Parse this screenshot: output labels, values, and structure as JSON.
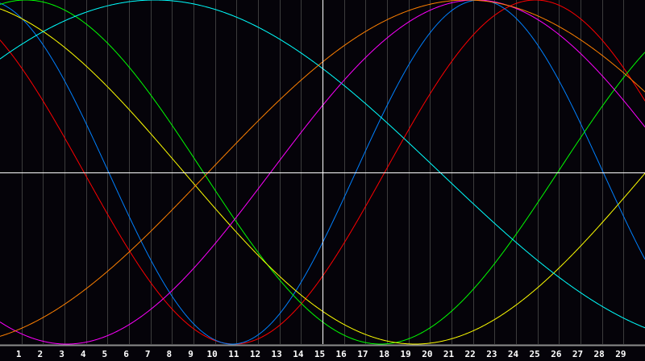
{
  "chart_data": {
    "type": "line",
    "title": "",
    "xlabel": "",
    "ylabel": "",
    "x_ticks": [
      "1",
      "2",
      "3",
      "4",
      "5",
      "6",
      "7",
      "8",
      "9",
      "10",
      "11",
      "12",
      "13",
      "14",
      "15",
      "16",
      "17",
      "18",
      "19",
      "20",
      "21",
      "22",
      "23",
      "24",
      "25",
      "26",
      "27",
      "28",
      "29"
    ],
    "xlim": [
      0,
      30
    ],
    "ylim": [
      -1,
      1
    ],
    "center_day": 15,
    "grid": true,
    "background": "#050309",
    "grid_color": "#3c3c3c",
    "axis_color": "#ffffff",
    "series": [
      {
        "color": "#ff0000",
        "period_days": 28,
        "peak_day": 24.9
      },
      {
        "color": "#0080ff",
        "period_days": 23,
        "peak_day": 22.3
      },
      {
        "color": "#00ff00",
        "period_days": 33,
        "peak_day": 1.2
      },
      {
        "color": "#ffff00",
        "period_days": 43,
        "peak_day": -2.2
      },
      {
        "color": "#00ffff",
        "period_days": 53,
        "peak_day": 7.2
      },
      {
        "color": "#ff00ff",
        "period_days": 38,
        "peak_day": 22.1
      },
      {
        "color": "#ff8000",
        "period_days": 48,
        "peak_day": 21.7
      }
    ]
  }
}
